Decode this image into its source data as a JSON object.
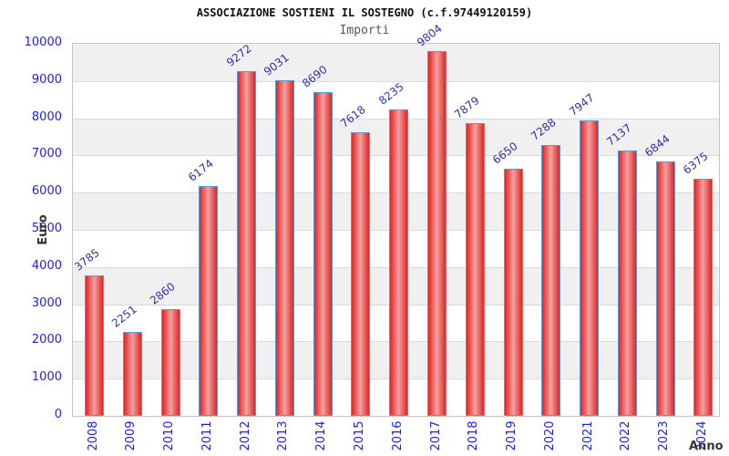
{
  "header": {
    "title": "ASSOCIAZIONE SOSTIENI IL SOSTEGNO (c.f.97449120159)",
    "subtitle": "Importi"
  },
  "chart_data": {
    "type": "bar",
    "title": "ASSOCIAZIONE SOSTIENI IL SOSTEGNO (c.f.97449120159)",
    "subtitle": "Importi",
    "xlabel": "Anno",
    "ylabel": "Euro",
    "categories": [
      "2008",
      "2009",
      "2010",
      "2011",
      "2012",
      "2013",
      "2014",
      "2015",
      "2016",
      "2017",
      "2018",
      "2019",
      "2020",
      "2021",
      "2022",
      "2023",
      "2024"
    ],
    "values": [
      3785,
      2251,
      2860,
      6174,
      9272,
      9031,
      8690,
      7618,
      8235,
      9804,
      7879,
      6650,
      7288,
      7947,
      7137,
      6844,
      6375
    ],
    "ylim": [
      0,
      10000
    ],
    "ytick_step": 1000,
    "grid": true,
    "legend": "none",
    "bands": "horizontal alternating gray/white, gray in 9000-10000, 7000-8000, 5000-6000, 3000-4000, 1000-2000",
    "value_labels_rotation_deg": -38,
    "xtick_rotation_deg": -90,
    "colors": {
      "title": "#111111",
      "subtitle": "#555555",
      "tick_label": "#1e1ee0",
      "value_label": "#3030a8",
      "bar_fill_edge": "#e42322",
      "bar_fill_center": "#efa2a2",
      "bar_border": "#5b9bd5",
      "band_gray": "#f0f0f0",
      "gridline": "#d9d9d9",
      "axis_label": "#333333"
    }
  }
}
